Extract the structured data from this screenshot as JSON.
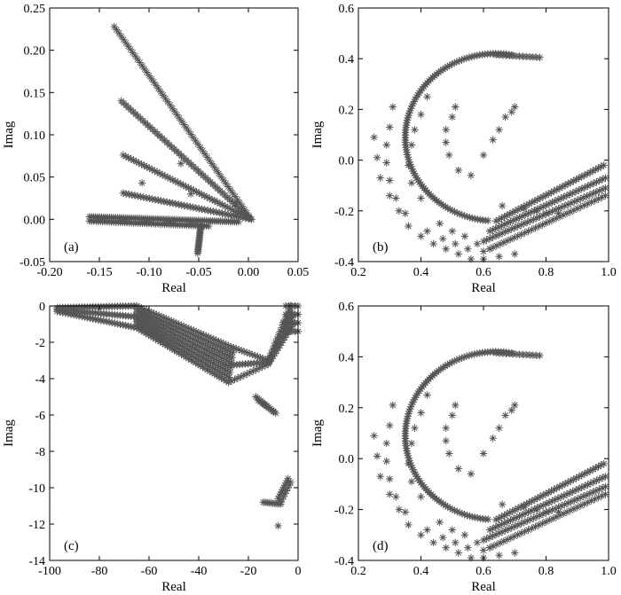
{
  "figure": {
    "marker_color": "#555555",
    "marker": "asterisk"
  },
  "chart_data": [
    {
      "id": "a",
      "type": "scatter",
      "panel_label": "(a)",
      "xlabel": "Real",
      "ylabel": "Imag",
      "xlim": [
        -0.2,
        0.05
      ],
      "ylim": [
        -0.05,
        0.25
      ],
      "xticks": [
        "-0.20",
        "-0.15",
        "-0.10",
        "-0.05",
        "0.00",
        "0.05"
      ],
      "yticks": [
        "-0.05",
        "0.00",
        "0.05",
        "0.10",
        "0.15",
        "0.20",
        "0.25"
      ],
      "series": [
        {
          "segments": [
            {
              "from": [
                -0.135,
                0.228
              ],
              "to": [
                0.003,
                0.0
              ],
              "n": 60
            },
            {
              "from": [
                -0.128,
                0.14
              ],
              "to": [
                0.003,
                0.0
              ],
              "n": 55
            },
            {
              "from": [
                -0.126,
                0.076
              ],
              "to": [
                0.003,
                0.0
              ],
              "n": 50
            },
            {
              "from": [
                -0.126,
                0.031
              ],
              "to": [
                0.003,
                0.0
              ],
              "n": 45
            },
            {
              "from": [
                -0.16,
                0.003
              ],
              "to": [
                -0.01,
                -0.003
              ],
              "n": 75
            },
            {
              "from": [
                -0.16,
                -0.002
              ],
              "to": [
                -0.04,
                -0.008
              ],
              "n": 55
            },
            {
              "from": [
                -0.048,
                -0.008
              ],
              "to": [
                -0.051,
                -0.04
              ],
              "n": 18
            }
          ],
          "points": [
            [
              -0.068,
              0.066
            ],
            [
              -0.107,
              0.043
            ],
            [
              -0.058,
              0.03
            ],
            [
              -0.034,
              0.022
            ],
            [
              -0.013,
              0.018
            ]
          ]
        }
      ]
    },
    {
      "id": "b",
      "type": "scatter",
      "panel_label": "(b)",
      "xlabel": "Real",
      "ylabel": "Imag",
      "xlim": [
        0.2,
        1.0
      ],
      "ylim": [
        -0.4,
        0.6
      ],
      "xticks": [
        "0.2",
        "0.4",
        "0.6",
        "0.8",
        "1.0"
      ],
      "yticks": [
        "-0.4",
        "-0.2",
        "0.0",
        "0.2",
        "0.4",
        "0.6"
      ],
      "series": [
        {
          "arc": {
            "center": [
              0.64,
              0.09
            ],
            "rx": 0.29,
            "ry": 0.33,
            "from_deg": 80,
            "to_deg": 265,
            "n": 110
          },
          "segments": [
            {
              "from": [
                0.78,
                0.405
              ],
              "to": [
                0.64,
                0.415
              ],
              "n": 14
            },
            {
              "from": [
                0.64,
                -0.24
              ],
              "to": [
                0.985,
                -0.02
              ],
              "n": 40
            },
            {
              "from": [
                0.62,
                -0.28
              ],
              "to": [
                0.99,
                -0.07
              ],
              "n": 40
            },
            {
              "from": [
                0.6,
                -0.32
              ],
              "to": [
                0.99,
                -0.11
              ],
              "n": 40
            },
            {
              "from": [
                0.62,
                -0.35
              ],
              "to": [
                0.99,
                -0.14
              ],
              "n": 34
            }
          ],
          "points": [
            [
              0.7,
              0.21
            ],
            [
              0.69,
              0.19
            ],
            [
              0.67,
              0.17
            ],
            [
              0.65,
              0.12
            ],
            [
              0.63,
              0.08
            ],
            [
              0.6,
              0.02
            ],
            [
              0.56,
              -0.06
            ],
            [
              0.51,
              0.21
            ],
            [
              0.5,
              0.17
            ],
            [
              0.48,
              0.12
            ],
            [
              0.48,
              0.07
            ],
            [
              0.49,
              0.02
            ],
            [
              0.52,
              -0.04
            ],
            [
              0.42,
              0.25
            ],
            [
              0.4,
              0.18
            ],
            [
              0.38,
              0.12
            ],
            [
              0.37,
              0.06
            ],
            [
              0.36,
              -0.02
            ],
            [
              0.37,
              -0.09
            ],
            [
              0.4,
              -0.15
            ],
            [
              0.31,
              0.21
            ],
            [
              0.3,
              0.13
            ],
            [
              0.29,
              0.06
            ],
            [
              0.29,
              -0.01
            ],
            [
              0.3,
              -0.08
            ],
            [
              0.32,
              -0.15
            ],
            [
              0.35,
              -0.21
            ],
            [
              0.25,
              0.09
            ],
            [
              0.26,
              0.01
            ],
            [
              0.27,
              -0.07
            ],
            [
              0.3,
              -0.14
            ],
            [
              0.33,
              -0.2
            ],
            [
              0.36,
              -0.26
            ],
            [
              0.4,
              -0.3
            ],
            [
              0.44,
              -0.33
            ],
            [
              0.48,
              -0.35
            ],
            [
              0.52,
              -0.37
            ],
            [
              0.56,
              -0.39
            ],
            [
              0.6,
              -0.39
            ],
            [
              0.65,
              -0.38
            ],
            [
              0.7,
              -0.37
            ],
            [
              0.46,
              -0.25
            ],
            [
              0.5,
              -0.28
            ],
            [
              0.54,
              -0.3
            ],
            [
              0.58,
              -0.33
            ],
            [
              0.62,
              -0.35
            ],
            [
              0.42,
              -0.28
            ],
            [
              0.47,
              -0.31
            ],
            [
              0.51,
              -0.33
            ],
            [
              0.55,
              -0.35
            ],
            [
              0.6,
              -0.36
            ],
            [
              0.66,
              -0.18
            ],
            [
              0.73,
              -0.19
            ],
            [
              0.77,
              -0.2
            ],
            [
              0.8,
              -0.21
            ],
            [
              0.84,
              -0.21
            ]
          ]
        }
      ]
    },
    {
      "id": "c",
      "type": "scatter",
      "panel_label": "(c)",
      "xlabel": "Real",
      "ylabel": "Imag",
      "xlim": [
        -100,
        0
      ],
      "ylim": [
        -14,
        0
      ],
      "xticks": [
        "-100",
        "-80",
        "-60",
        "-40",
        "-20",
        "0"
      ],
      "yticks": [
        "-14",
        "-12",
        "-10",
        "-8",
        "-6",
        "-4",
        "-2",
        "0"
      ],
      "series": [
        {
          "bands": [
            {
              "top_from": [
                -97,
                -0.1
              ],
              "top_to": [
                -65,
                0.0
              ],
              "bot_from": [
                -97,
                -0.3
              ],
              "bot_to": [
                -65,
                -1.2
              ],
              "rows": 3,
              "n": 30
            },
            {
              "top_from": [
                -65,
                0.0
              ],
              "top_to": [
                -26,
                -2.3
              ],
              "bot_from": [
                -65,
                -1.2
              ],
              "bot_to": [
                -28,
                -4.2
              ],
              "rows": 8,
              "n": 40
            },
            {
              "top_from": [
                -26,
                -2.3
              ],
              "top_to": [
                -12,
                -3.0
              ],
              "bot_from": [
                -28,
                -4.2
              ],
              "bot_to": [
                -12,
                -3.2
              ],
              "rows": 3,
              "n": 14
            },
            {
              "top_from": [
                -12,
                -3.0
              ],
              "top_to": [
                -3,
                0.0
              ],
              "bot_from": [
                -12,
                -3.2
              ],
              "bot_to": [
                -2,
                -1.0
              ],
              "rows": 4,
              "n": 16
            },
            {
              "top_from": [
                -5,
                0.0
              ],
              "top_to": [
                0,
                0.0
              ],
              "bot_from": [
                -5,
                -1.4
              ],
              "bot_to": [
                0,
                -1.4
              ],
              "rows": 4,
              "n": 5
            }
          ],
          "segments": [
            {
              "from": [
                -17,
                -5.0
              ],
              "to": [
                -10,
                -5.8
              ],
              "n": 12
            },
            {
              "from": [
                -16,
                -5.2
              ],
              "to": [
                -9,
                -5.9
              ],
              "n": 10
            },
            {
              "from": [
                -14,
                -10.8
              ],
              "to": [
                -7,
                -10.9
              ],
              "n": 10
            },
            {
              "from": [
                -8,
                -10.6
              ],
              "to": [
                -4,
                -9.5
              ],
              "n": 10
            },
            {
              "from": [
                -7,
                -10.8
              ],
              "to": [
                -3,
                -9.7
              ],
              "n": 8
            }
          ],
          "points": [
            [
              -8,
              -12.1
            ],
            [
              -6,
              -0.9
            ],
            [
              -9,
              -2.0
            ]
          ]
        }
      ]
    },
    {
      "id": "d",
      "type": "scatter",
      "panel_label": "(d)",
      "xlabel": "Real",
      "ylabel": "Imag",
      "xlim": [
        0.2,
        1.0
      ],
      "ylim": [
        -0.4,
        0.6
      ],
      "xticks": [
        "0.2",
        "0.4",
        "0.6",
        "0.8",
        "1.0"
      ],
      "yticks": [
        "-0.4",
        "-0.2",
        "0.0",
        "0.2",
        "0.4",
        "0.6"
      ],
      "same_as": "b"
    }
  ]
}
